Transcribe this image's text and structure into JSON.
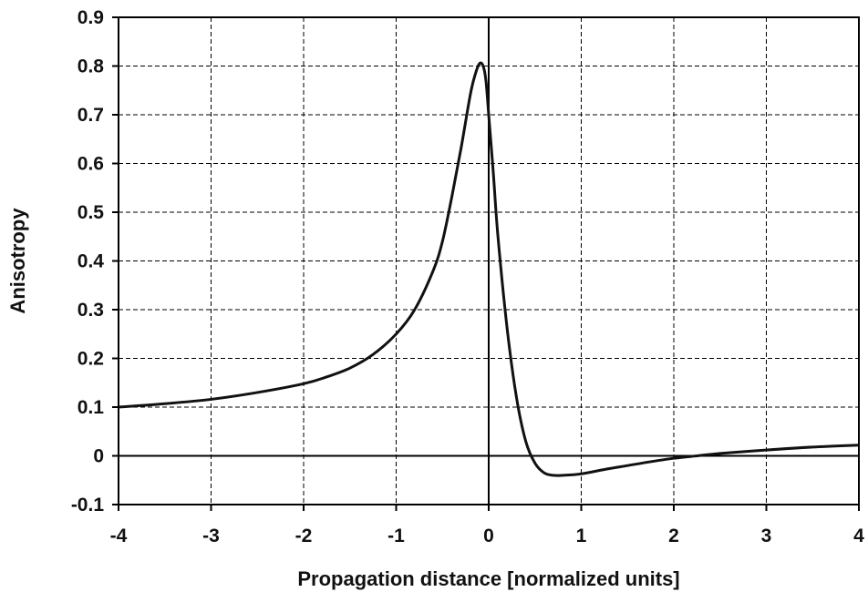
{
  "chart_data": {
    "type": "line",
    "title": "",
    "xlabel": "Propagation distance [normalized units]",
    "ylabel": "Anisotropy",
    "xlim": [
      -4,
      4
    ],
    "ylim": [
      -0.1,
      0.9
    ],
    "xticks": [
      -4,
      -3,
      -2,
      -1,
      0,
      1,
      2,
      3,
      4
    ],
    "xtick_labels": [
      "-4",
      "-3",
      "-2",
      "-1",
      "0",
      "1",
      "2",
      "3",
      "4"
    ],
    "yticks": [
      -0.1,
      0,
      0.1,
      0.2,
      0.3,
      0.4,
      0.5,
      0.6,
      0.7,
      0.8,
      0.9
    ],
    "ytick_labels": [
      "-0.1",
      "0",
      "0.1",
      "0.2",
      "0.3",
      "0.4",
      "0.5",
      "0.6",
      "0.7",
      "0.8",
      "0.9"
    ],
    "grid": true,
    "series": [
      {
        "color": "#111111",
        "x": [
          -4,
          -3.5,
          -3,
          -2.5,
          -2,
          -1.75,
          -1.5,
          -1.25,
          -1,
          -0.8,
          -0.6,
          -0.5,
          -0.4,
          -0.3,
          -0.2,
          -0.15,
          -0.1,
          -0.06,
          -0.03,
          0,
          0.05,
          0.1,
          0.2,
          0.3,
          0.4,
          0.5,
          0.6,
          0.7,
          0.8,
          1,
          1.25,
          1.5,
          1.75,
          2,
          2.25,
          2.5,
          3,
          3.5,
          4
        ],
        "y": [
          0.1,
          0.107,
          0.116,
          0.13,
          0.148,
          0.162,
          0.18,
          0.208,
          0.25,
          0.3,
          0.38,
          0.44,
          0.53,
          0.63,
          0.74,
          0.78,
          0.805,
          0.8,
          0.77,
          0.7,
          0.58,
          0.45,
          0.26,
          0.12,
          0.03,
          -0.015,
          -0.035,
          -0.04,
          -0.04,
          -0.037,
          -0.028,
          -0.02,
          -0.012,
          -0.005,
          0,
          0.005,
          0.012,
          0.018,
          0.022
        ]
      }
    ]
  }
}
